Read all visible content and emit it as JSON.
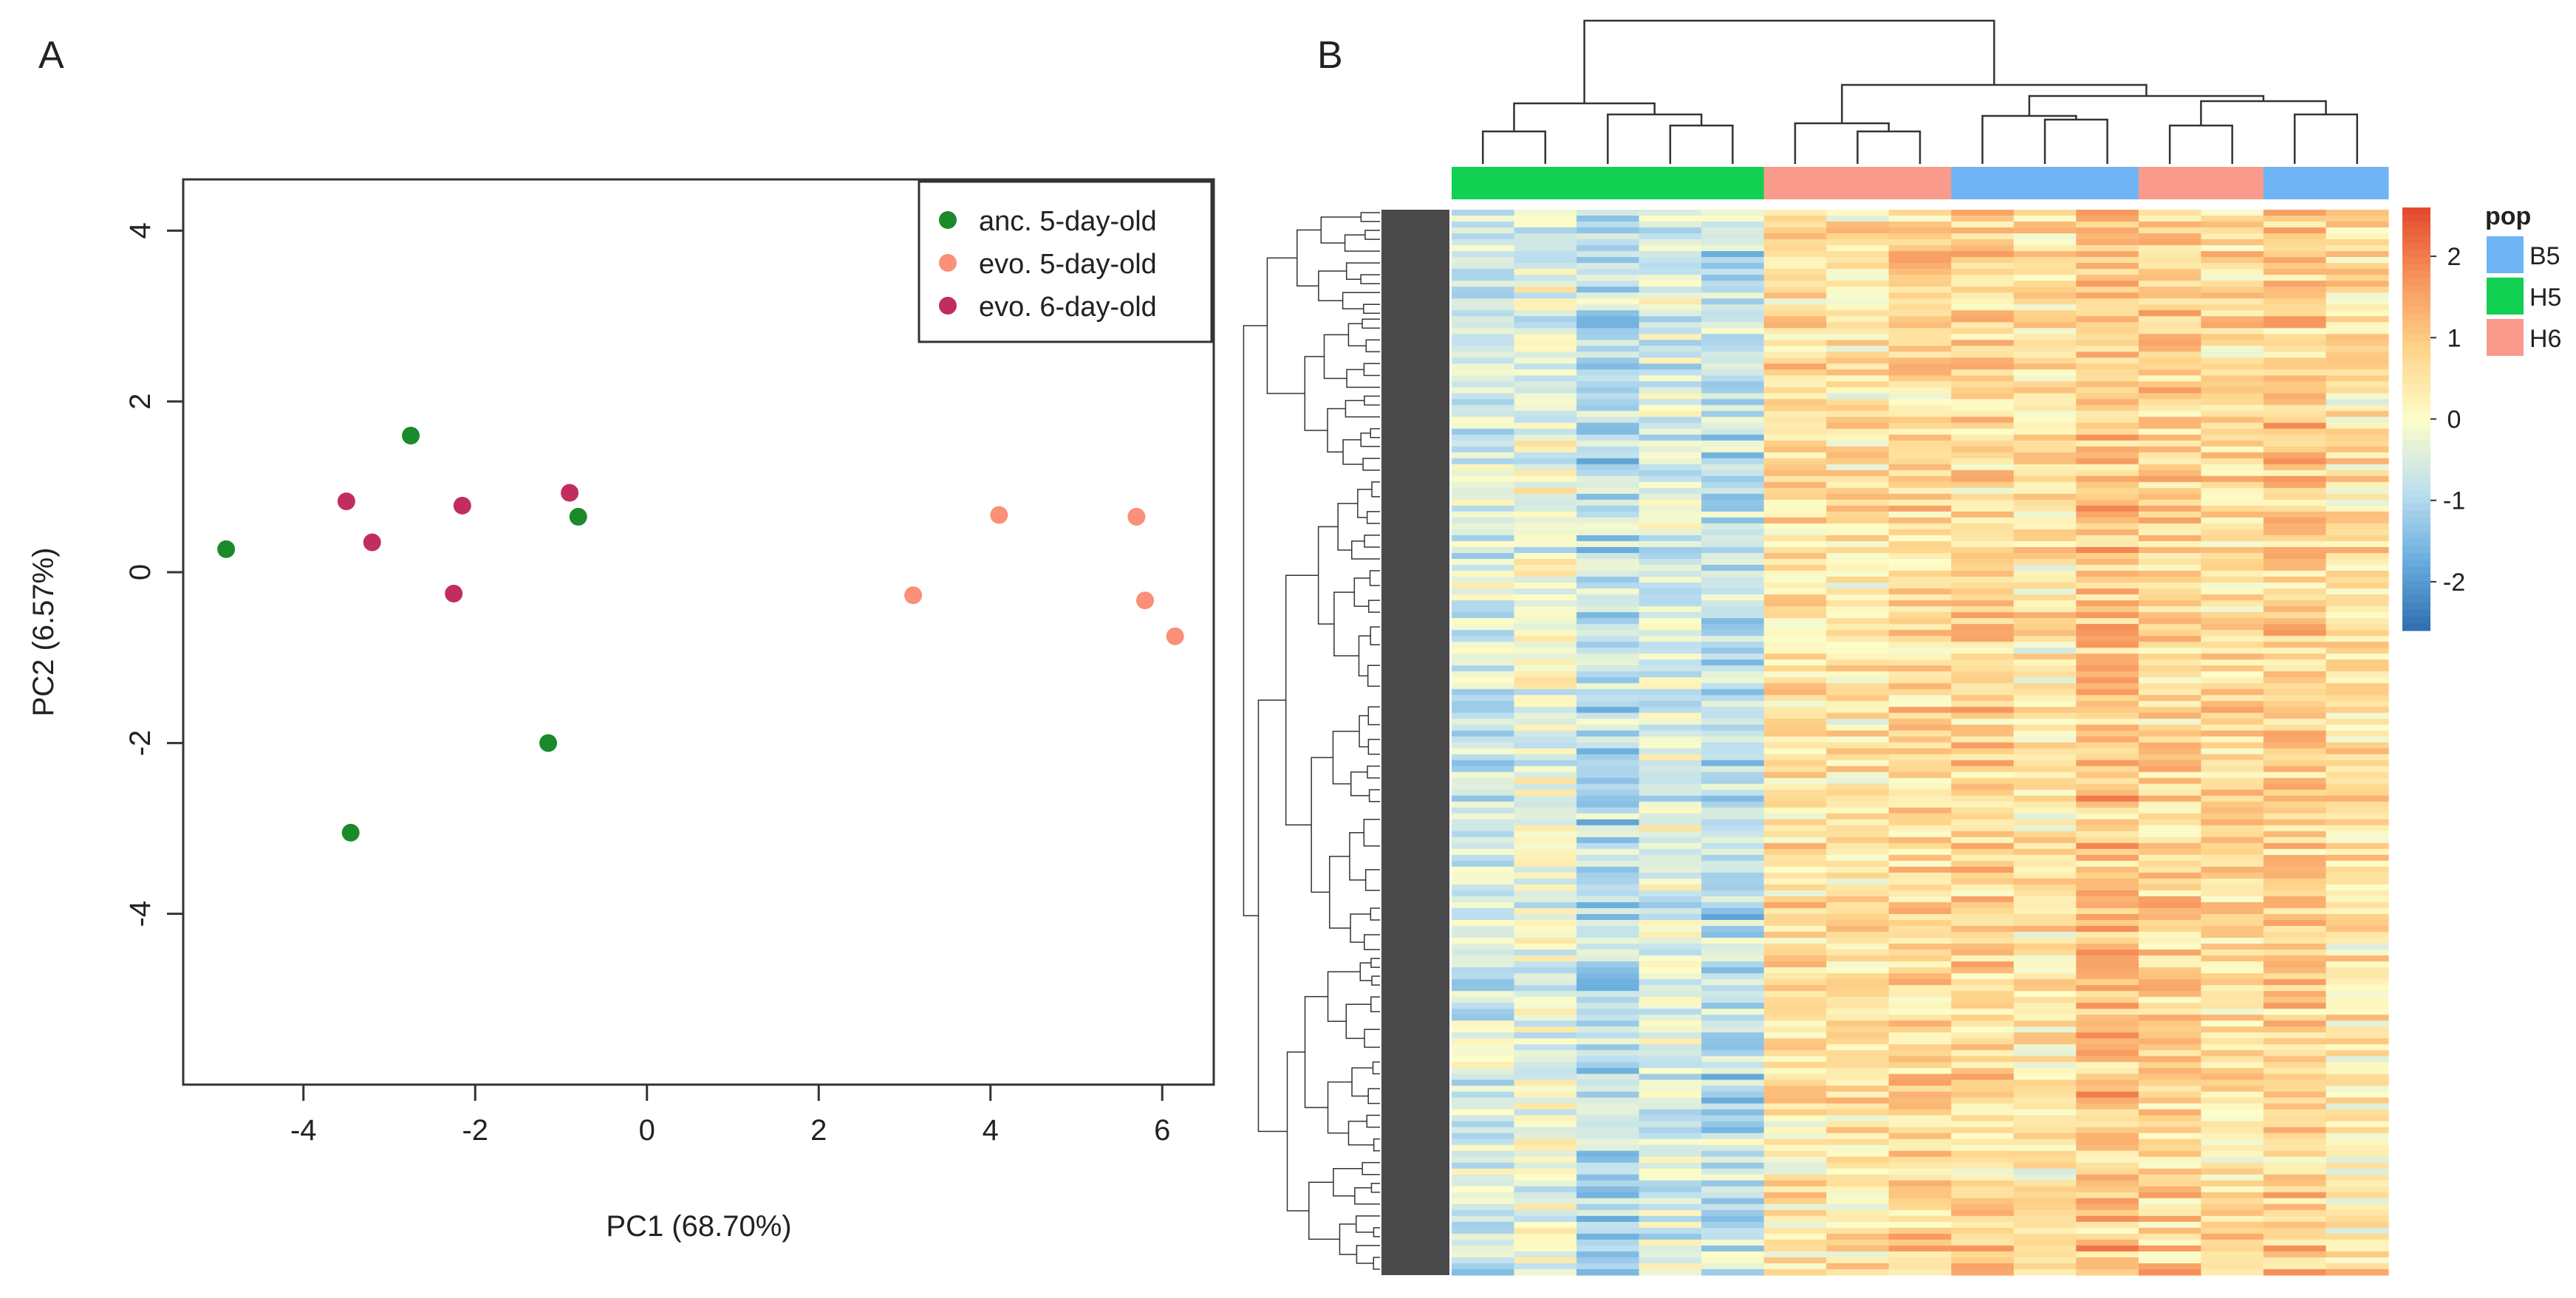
{
  "panels": {
    "a_label": "A",
    "b_label": "B"
  },
  "chart_data": [
    {
      "type": "scatter",
      "title": "",
      "xlabel": "PC1 (68.70%)",
      "ylabel": "PC2 (6.57%)",
      "xlim": [
        -5.4,
        6.6
      ],
      "ylim": [
        -6.0,
        4.6
      ],
      "xticks": [
        -4,
        -2,
        0,
        2,
        4,
        6
      ],
      "yticks": [
        4,
        2,
        0,
        -2,
        -4
      ],
      "grid": false,
      "legend_position": "top-right",
      "series": [
        {
          "name": "anc. 5-day-old",
          "color": "#1a8a2a",
          "points": [
            [
              -4.9,
              0.27
            ],
            [
              -2.75,
              1.6
            ],
            [
              -0.8,
              0.65
            ],
            [
              -1.15,
              -2.0
            ],
            [
              -3.45,
              -3.05
            ]
          ]
        },
        {
          "name": "evo. 5-day-old",
          "color": "#f99077",
          "points": [
            [
              3.1,
              -0.27
            ],
            [
              4.1,
              0.67
            ],
            [
              5.7,
              0.65
            ],
            [
              5.8,
              -0.33
            ],
            [
              6.15,
              -0.75
            ]
          ]
        },
        {
          "name": "evo. 6-day-old",
          "color": "#c12e5e",
          "points": [
            [
              -3.5,
              0.83
            ],
            [
              -3.2,
              0.35
            ],
            [
              -2.15,
              0.78
            ],
            [
              -0.9,
              0.93
            ],
            [
              -2.25,
              -0.25
            ]
          ]
        }
      ]
    },
    {
      "type": "heatmap",
      "title": "",
      "columns": 15,
      "rows": 180,
      "color_scale": {
        "range": [
          -2.6,
          2.6
        ],
        "ticks": [
          2,
          1,
          0,
          -1,
          -2
        ],
        "colors": [
          "#2f6db0",
          "#6aaede",
          "#bfe0ef",
          "#fdfdc8",
          "#fed38a",
          "#f7945c",
          "#e3462d"
        ]
      },
      "column_annotation": {
        "title": "pop",
        "groups": [
          "H5",
          "H5",
          "H5",
          "H5",
          "H5",
          "H6",
          "H6",
          "H6",
          "B5",
          "B5",
          "B5",
          "H6",
          "H6",
          "B5",
          "B5"
        ],
        "legend": [
          {
            "label": "B5",
            "color": "#6fb4f5"
          },
          {
            "label": "H5",
            "color": "#12d051"
          },
          {
            "label": "H6",
            "color": "#f99a8c"
          }
        ]
      },
      "column_means": [
        -0.6,
        -0.2,
        -0.95,
        -0.4,
        -0.85,
        0.55,
        0.45,
        0.7,
        0.75,
        0.45,
        1.05,
        0.75,
        0.55,
        0.85,
        0.45
      ]
    }
  ]
}
